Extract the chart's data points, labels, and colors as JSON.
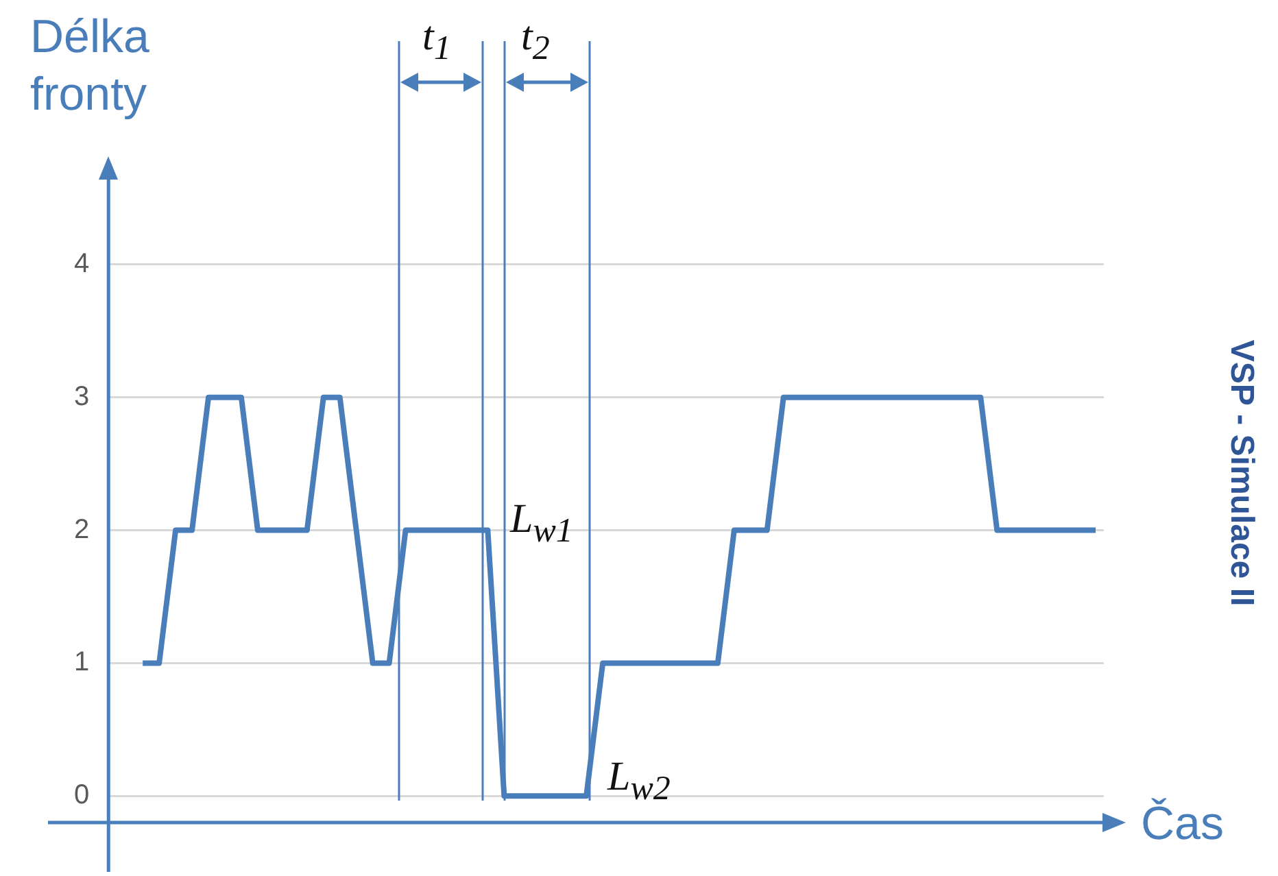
{
  "chart_data": {
    "type": "line",
    "ylabel": "Délka fronty",
    "xlabel": "Čas",
    "categories": [
      null,
      null,
      null,
      null,
      null,
      null,
      null,
      null,
      null,
      null,
      null,
      null,
      null,
      null,
      null,
      null,
      null,
      null,
      null,
      null,
      null,
      null,
      null,
      null,
      null,
      null,
      null,
      null,
      null,
      null,
      null,
      null,
      null,
      null,
      null,
      null,
      null,
      null,
      null,
      null,
      null,
      null,
      null,
      null,
      null,
      null,
      null,
      null,
      null,
      null,
      null,
      null,
      null,
      null,
      null,
      null,
      null,
      null,
      null
    ],
    "series": [
      {
        "color": "#4a7ebb",
        "values": [
          1,
          1,
          2,
          2,
          3,
          3,
          3,
          2,
          2,
          2,
          2,
          3,
          3,
          2,
          1,
          1,
          2,
          2,
          2,
          2,
          2,
          2,
          0,
          0,
          0,
          0,
          0,
          0,
          1,
          1,
          1,
          1,
          1,
          1,
          1,
          1,
          2,
          2,
          2,
          3,
          3,
          3,
          3,
          3,
          3,
          3,
          3,
          3,
          3,
          3,
          3,
          3,
          2,
          2,
          2,
          2,
          2,
          2,
          2
        ]
      }
    ],
    "ylim": [
      -0.2,
      4.65
    ],
    "yticks": [
      0,
      1,
      2,
      3,
      4
    ],
    "grid": "y",
    "legend": false,
    "marker": "none",
    "line_style": "solid",
    "tick_labels": "y",
    "annotations": [
      "t$_{1}$",
      "t$_{2}$",
      "L$_{w1}$",
      "L$_{w2}$",
      "VSP - Simulace II"
    ]
  }
}
